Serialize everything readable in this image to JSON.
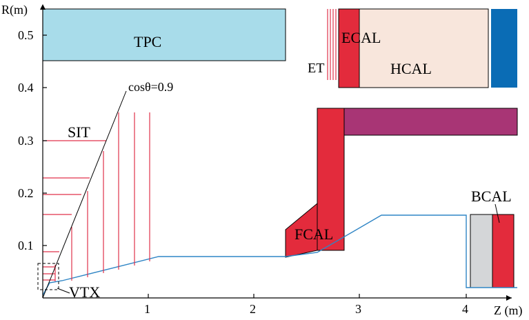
{
  "axes": {
    "z_label": "Z (m)",
    "r_label": "R(m)",
    "z_ticks": [
      "1",
      "2",
      "3",
      "4"
    ],
    "r_ticks": [
      "0.1",
      "0.2",
      "0.3",
      "0.4",
      "0.5"
    ]
  },
  "labels": {
    "tpc": "TPC",
    "ecal": "ECAL",
    "hcal": "HCAL",
    "et": "ET",
    "sit": "SIT",
    "fcal": "FCAL",
    "bcal": "BCAL",
    "vtx": "VTX",
    "cos_theta": "cosθ=0.9"
  },
  "colors": {
    "tpc": "#a8dcea",
    "ecal": "#e32b3c",
    "hcal": "#f8e6dc",
    "yoke_blue": "#0a6cb5",
    "magenta": "#a83575",
    "gray": "#d4d6d8",
    "beampipe": "#2f85c5",
    "sit_lines": "#e0314a"
  }
}
